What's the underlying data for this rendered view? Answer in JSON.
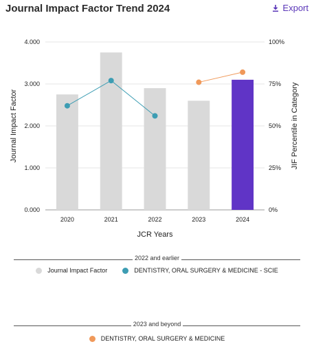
{
  "header": {
    "title": "Journal Impact Factor Trend 2024",
    "export_label": "Export"
  },
  "legend": {
    "group1_label": "2022 and earlier",
    "group2_label": "2023 and beyond",
    "item_jif": "Journal Impact Factor",
    "item_scie": "DENTISTRY, ORAL SURGERY & MEDICINE - SCIE",
    "item_new": "DENTISTRY, ORAL SURGERY & MEDICINE"
  },
  "colors": {
    "bar": "#d9d9d9",
    "bar_highlight": "#6034c6",
    "scie_line": "#3d9db3",
    "new_line": "#f0995a"
  },
  "chart_data": {
    "type": "bar",
    "categories": [
      "2020",
      "2021",
      "2022",
      "2023",
      "2024"
    ],
    "xlabel": "JCR Years",
    "ylabel": "Journal Impact Factor",
    "y2label": "JIF Percentile in Category",
    "ylim": [
      0,
      4
    ],
    "yticks": [
      "0.000",
      "1.000",
      "2.000",
      "3.000",
      "4.000"
    ],
    "y2lim": [
      0,
      100
    ],
    "y2ticks": [
      "0%",
      "25%",
      "50%",
      "75%",
      "100%"
    ],
    "series": [
      {
        "name": "Journal Impact Factor",
        "type": "bar",
        "values": [
          2.75,
          3.75,
          2.9,
          2.6,
          3.1
        ],
        "highlight_index": 4
      },
      {
        "name": "DENTISTRY, ORAL SURGERY & MEDICINE - SCIE",
        "type": "line",
        "axis": "right",
        "x": [
          "2020",
          "2021",
          "2022"
        ],
        "values": [
          62,
          77,
          56
        ]
      },
      {
        "name": "DENTISTRY, ORAL SURGERY & MEDICINE",
        "type": "line",
        "axis": "right",
        "x": [
          "2023",
          "2024"
        ],
        "values": [
          76,
          82
        ]
      }
    ],
    "grid": "horizontal"
  }
}
